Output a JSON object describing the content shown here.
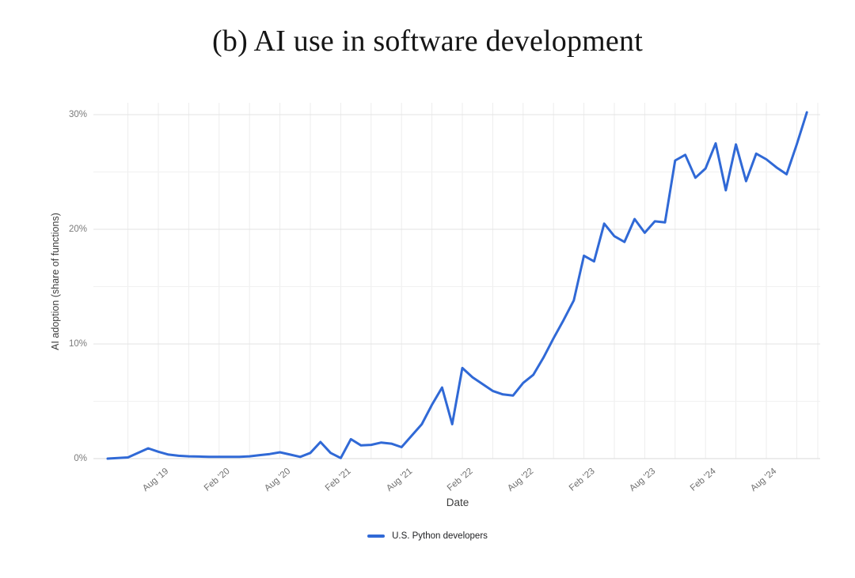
{
  "chart_data": {
    "type": "line",
    "title": "(b) AI use in software development",
    "xlabel": "Date",
    "ylabel": "AI adoption (share of functions)",
    "legend_position": "bottom-center",
    "grid": true,
    "ylim": [
      0,
      31
    ],
    "yticks": [
      {
        "value": 0,
        "label": "0%"
      },
      {
        "value": 10,
        "label": "10%"
      },
      {
        "value": 20,
        "label": "20%"
      },
      {
        "value": 30,
        "label": "30%"
      }
    ],
    "yticks_minor": [
      5,
      15,
      25
    ],
    "xticks": [
      "Aug '19",
      "Feb '20",
      "Aug '20",
      "Feb '21",
      "Aug '21",
      "Feb '22",
      "Aug '22",
      "Feb '23",
      "Aug '23",
      "Feb '24",
      "Aug '24"
    ],
    "series": [
      {
        "name": "U.S. Python developers",
        "color": "#3069d6",
        "x": [
          "2019-03",
          "2019-04",
          "2019-05",
          "2019-06",
          "2019-07",
          "2019-08",
          "2019-09",
          "2019-10",
          "2019-11",
          "2019-12",
          "2020-01",
          "2020-02",
          "2020-03",
          "2020-04",
          "2020-05",
          "2020-06",
          "2020-07",
          "2020-08",
          "2020-09",
          "2020-10",
          "2020-11",
          "2020-12",
          "2021-01",
          "2021-02",
          "2021-03",
          "2021-04",
          "2021-05",
          "2021-06",
          "2021-07",
          "2021-08",
          "2021-09",
          "2021-10",
          "2021-11",
          "2021-12",
          "2022-01",
          "2022-02",
          "2022-03",
          "2022-04",
          "2022-05",
          "2022-06",
          "2022-07",
          "2022-08",
          "2022-09",
          "2022-10",
          "2022-11",
          "2022-12",
          "2023-01",
          "2023-02",
          "2023-03",
          "2023-04",
          "2023-05",
          "2023-06",
          "2023-07",
          "2023-08",
          "2023-09",
          "2023-10",
          "2023-11",
          "2023-12",
          "2024-01",
          "2024-02",
          "2024-03",
          "2024-04",
          "2024-05",
          "2024-06",
          "2024-07",
          "2024-08",
          "2024-09",
          "2024-10",
          "2024-11",
          "2024-12"
        ],
        "values": [
          0.0,
          0.05,
          0.1,
          0.5,
          0.9,
          0.6,
          0.35,
          0.25,
          0.2,
          0.18,
          0.15,
          0.15,
          0.15,
          0.15,
          0.2,
          0.3,
          0.4,
          0.55,
          0.35,
          0.15,
          0.5,
          1.45,
          0.5,
          0.05,
          1.7,
          1.15,
          1.2,
          1.4,
          1.3,
          1.0,
          2.0,
          3.0,
          4.7,
          6.2,
          3.0,
          7.9,
          7.1,
          6.5,
          5.9,
          5.6,
          5.5,
          6.6,
          7.3,
          8.8,
          10.5,
          12.1,
          13.8,
          17.7,
          17.2,
          20.5,
          19.4,
          18.9,
          20.9,
          19.7,
          20.7,
          20.6,
          26.0,
          26.5,
          24.5,
          25.3,
          27.5,
          23.4,
          27.4,
          24.2,
          26.6,
          26.1,
          25.4,
          24.8,
          27.4,
          30.2
        ]
      }
    ]
  }
}
